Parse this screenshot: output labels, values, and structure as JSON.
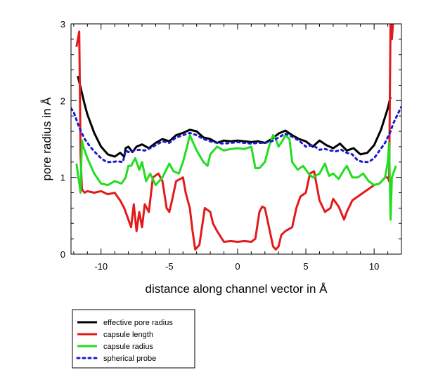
{
  "chart_data": {
    "type": "line",
    "xlabel": "distance along channel vector in Å",
    "ylabel": "pore radius in Å",
    "xlim": [
      -12.2,
      12
    ],
    "ylim": [
      0,
      3
    ],
    "xticks": [
      -10,
      -5,
      0,
      5,
      10
    ],
    "yticks": [
      0,
      1,
      2,
      3
    ],
    "grid": false,
    "legend_position": "bottom-left, below plot",
    "series": [
      {
        "name": "effective pore radius",
        "color": "#000000",
        "style": "solid",
        "x": [
          -11.7,
          -11.4,
          -11.2,
          -11.0,
          -10.5,
          -10.0,
          -9.5,
          -9.0,
          -8.6,
          -8.3,
          -8.2,
          -8.0,
          -7.7,
          -7.4,
          -7.0,
          -6.5,
          -6.0,
          -5.5,
          -5.0,
          -4.5,
          -4.0,
          -3.5,
          -3.0,
          -2.5,
          -2.0,
          -1.5,
          -1.0,
          -0.5,
          0.0,
          0.5,
          1.0,
          1.5,
          2.0,
          2.5,
          3.0,
          3.5,
          4.0,
          4.5,
          5.0,
          5.5,
          6.0,
          6.5,
          7.0,
          7.5,
          8.0,
          8.5,
          9.0,
          9.5,
          10.0,
          10.5,
          11.0,
          11.2
        ],
        "values": [
          2.32,
          2.1,
          1.95,
          1.82,
          1.58,
          1.4,
          1.3,
          1.27,
          1.32,
          1.27,
          1.38,
          1.4,
          1.33,
          1.4,
          1.43,
          1.38,
          1.45,
          1.5,
          1.47,
          1.55,
          1.58,
          1.62,
          1.6,
          1.52,
          1.5,
          1.45,
          1.48,
          1.47,
          1.48,
          1.47,
          1.46,
          1.47,
          1.45,
          1.5,
          1.57,
          1.61,
          1.55,
          1.5,
          1.47,
          1.4,
          1.48,
          1.42,
          1.38,
          1.44,
          1.35,
          1.38,
          1.3,
          1.32,
          1.42,
          1.62,
          1.9,
          2.05
        ]
      },
      {
        "name": "capsule length",
        "color": "#e31a1c",
        "style": "solid",
        "x": [
          -11.8,
          -11.6,
          -11.5,
          -11.4,
          -11.3,
          -11.2,
          -11.0,
          -10.5,
          -10.0,
          -9.5,
          -9.0,
          -8.6,
          -8.3,
          -8.0,
          -7.8,
          -7.6,
          -7.4,
          -7.2,
          -7.0,
          -6.8,
          -6.5,
          -6.2,
          -5.8,
          -5.5,
          -5.2,
          -5.0,
          -4.8,
          -4.5,
          -4.0,
          -3.8,
          -3.5,
          -3.3,
          -3.1,
          -2.8,
          -2.4,
          -2.0,
          -1.8,
          -1.5,
          -1.0,
          -0.5,
          0.0,
          0.5,
          1.0,
          1.3,
          1.6,
          1.8,
          2.0,
          2.3,
          2.6,
          2.8,
          3.0,
          3.2,
          3.5,
          4.0,
          4.3,
          4.6,
          5.0,
          5.3,
          5.6,
          6.0,
          6.4,
          6.8,
          7.0,
          7.4,
          7.8,
          8.0,
          8.4,
          8.8,
          9.2,
          9.6,
          10.0,
          10.4,
          10.8,
          11.0,
          11.1,
          11.2,
          11.3,
          11.4
        ],
        "values": [
          2.7,
          2.9,
          1.3,
          0.85,
          0.82,
          0.8,
          0.82,
          0.8,
          0.82,
          0.78,
          0.8,
          0.7,
          0.6,
          0.45,
          0.35,
          0.65,
          0.3,
          0.55,
          0.35,
          0.65,
          0.55,
          1.0,
          1.05,
          0.95,
          0.6,
          0.55,
          0.7,
          0.95,
          1.0,
          0.8,
          0.6,
          0.3,
          0.06,
          0.12,
          0.6,
          0.55,
          0.4,
          0.3,
          0.16,
          0.17,
          0.16,
          0.17,
          0.16,
          0.2,
          0.55,
          0.62,
          0.6,
          0.35,
          0.1,
          0.06,
          0.1,
          0.25,
          0.3,
          0.35,
          0.6,
          0.75,
          0.8,
          1.05,
          1.08,
          0.7,
          0.55,
          0.6,
          0.72,
          0.62,
          0.45,
          0.55,
          0.7,
          0.75,
          0.8,
          0.85,
          0.9,
          0.92,
          1.0,
          1.0,
          0.95,
          3.05,
          2.8,
          3.05
        ]
      },
      {
        "name": "capsule radius",
        "color": "#22dd22",
        "style": "solid",
        "x": [
          -11.8,
          -11.5,
          -11.4,
          -11.3,
          -11.0,
          -10.5,
          -10.0,
          -9.5,
          -9.0,
          -8.5,
          -8.2,
          -8.0,
          -7.8,
          -7.5,
          -7.2,
          -7.0,
          -6.7,
          -6.4,
          -6.0,
          -5.5,
          -5.0,
          -4.7,
          -4.3,
          -4.0,
          -3.7,
          -3.5,
          -3.0,
          -2.5,
          -2.2,
          -2.0,
          -1.5,
          -1.0,
          -0.5,
          0.0,
          0.5,
          1.0,
          1.3,
          1.6,
          2.0,
          2.3,
          2.6,
          2.8,
          3.0,
          3.3,
          3.5,
          3.8,
          4.0,
          4.4,
          4.8,
          5.2,
          5.5,
          6.0,
          6.4,
          6.7,
          7.0,
          7.4,
          7.8,
          8.0,
          8.4,
          8.8,
          9.2,
          9.6,
          10.0,
          10.4,
          10.8,
          11.0,
          11.1,
          11.2,
          11.3,
          11.6
        ],
        "values": [
          1.18,
          0.8,
          1.48,
          1.4,
          1.25,
          1.05,
          0.92,
          0.9,
          0.95,
          0.92,
          1.0,
          1.15,
          1.15,
          1.25,
          1.1,
          1.2,
          0.95,
          1.05,
          0.9,
          1.0,
          1.18,
          1.08,
          1.05,
          1.2,
          1.4,
          1.55,
          1.35,
          1.2,
          1.15,
          1.3,
          1.4,
          1.35,
          1.37,
          1.38,
          1.37,
          1.4,
          1.12,
          1.12,
          1.2,
          1.4,
          1.55,
          1.5,
          1.4,
          1.48,
          1.55,
          1.5,
          1.2,
          1.1,
          1.15,
          1.05,
          1.0,
          1.05,
          1.18,
          1.02,
          1.05,
          0.98,
          1.1,
          1.15,
          1.0,
          1.0,
          1.05,
          0.95,
          0.9,
          0.92,
          1.0,
          1.2,
          1.45,
          0.45,
          1.0,
          1.15
        ]
      },
      {
        "name": "spherical probe",
        "color": "#1a1acc",
        "style": "dotted",
        "x": [
          -12.2,
          -12.0,
          -11.6,
          -11.2,
          -10.8,
          -10.4,
          -10.0,
          -9.6,
          -9.2,
          -8.8,
          -8.4,
          -8.2,
          -8.0,
          -7.6,
          -7.2,
          -6.8,
          -6.4,
          -6.0,
          -5.5,
          -5.0,
          -4.5,
          -4.0,
          -3.5,
          -3.0,
          -2.5,
          -2.0,
          -1.5,
          -1.0,
          -0.5,
          0.0,
          0.5,
          1.0,
          1.5,
          2.0,
          2.5,
          3.0,
          3.5,
          4.0,
          4.5,
          5.0,
          5.5,
          6.0,
          6.4,
          6.8,
          7.2,
          7.6,
          8.0,
          8.4,
          8.8,
          9.2,
          9.6,
          10.0,
          10.4,
          10.8,
          11.2,
          11.4,
          11.8,
          12.0
        ],
        "values": [
          1.9,
          1.85,
          1.65,
          1.5,
          1.4,
          1.32,
          1.25,
          1.2,
          1.2,
          1.21,
          1.2,
          1.35,
          1.33,
          1.35,
          1.36,
          1.35,
          1.38,
          1.42,
          1.47,
          1.45,
          1.52,
          1.55,
          1.58,
          1.55,
          1.5,
          1.47,
          1.45,
          1.44,
          1.45,
          1.46,
          1.45,
          1.44,
          1.45,
          1.45,
          1.47,
          1.52,
          1.57,
          1.53,
          1.48,
          1.4,
          1.42,
          1.36,
          1.37,
          1.35,
          1.34,
          1.36,
          1.32,
          1.3,
          1.22,
          1.2,
          1.2,
          1.25,
          1.35,
          1.45,
          1.6,
          1.7,
          1.85,
          1.92
        ]
      }
    ]
  }
}
